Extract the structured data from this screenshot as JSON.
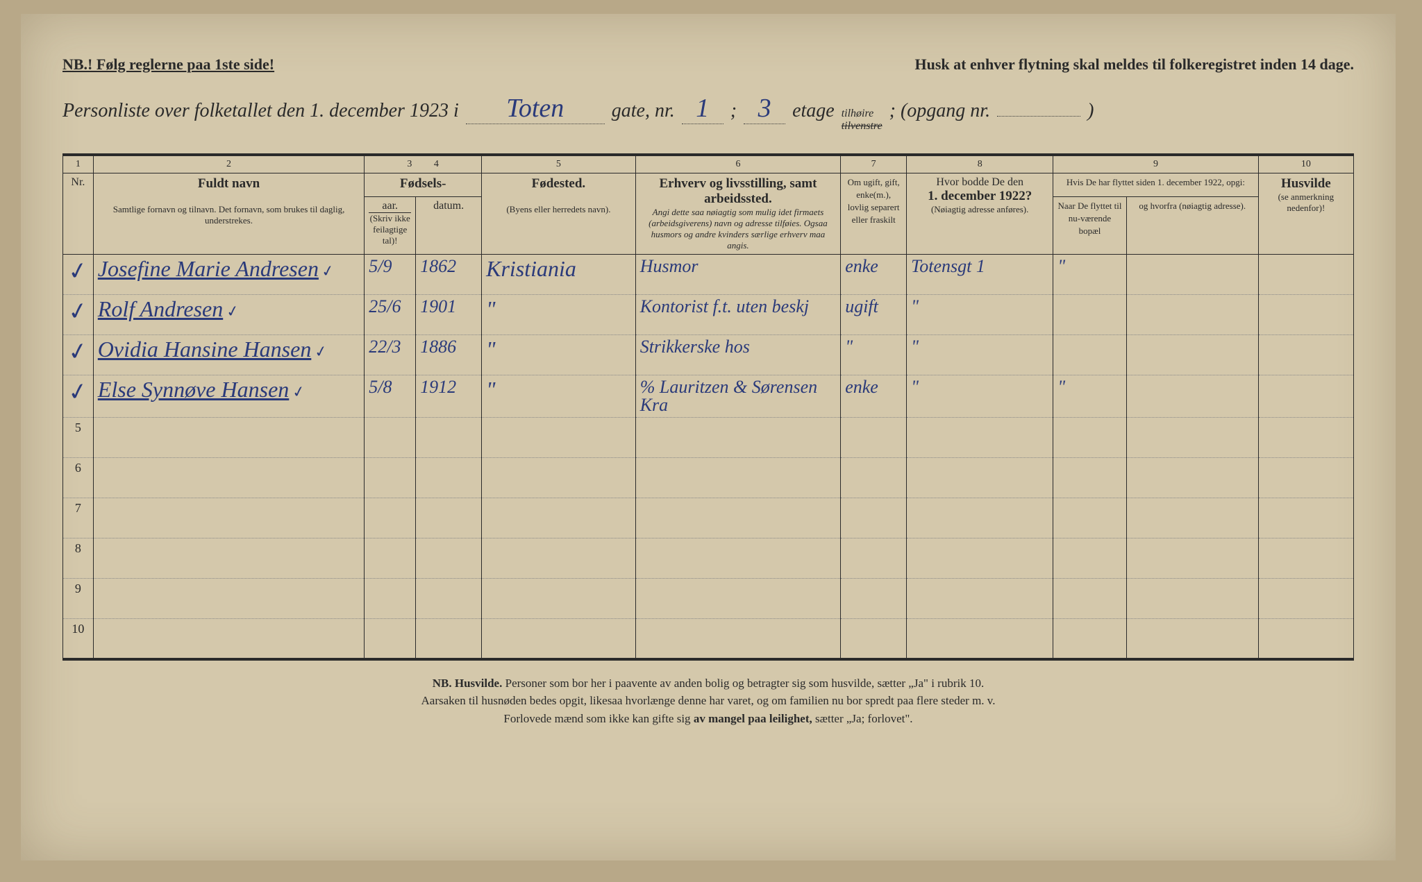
{
  "top": {
    "left": "NB.! Følg reglerne paa 1ste side!",
    "right": "Husk at enhver flytning skal meldes til folkeregistret inden 14 dage."
  },
  "title": {
    "prefix": "Personliste over folketallet den 1. december 1923 i",
    "street": "Toten",
    "gate_label": "gate, nr.",
    "gate_nr": "1",
    "semicolon": ";",
    "etage_nr": "3",
    "etage_label": "etage",
    "tilheire": "tilhøire",
    "tilvenstre": "tilvenstre",
    "opgang": "; (opgang nr.",
    "opgang_val": "",
    "close": ")"
  },
  "columns": {
    "nums": [
      "1",
      "2",
      "3",
      "4",
      "5",
      "6",
      "7",
      "8",
      "9",
      "10"
    ],
    "nr": "Nr.",
    "name_big": "Fuldt navn",
    "name_small": "Samtlige fornavn og tilnavn.   Det fornavn, som brukes til daglig, understrekes.",
    "fodsels": "Fødsels-",
    "aar": "aar.",
    "datum": "datum.",
    "aar_small": "(Skriv ikke feilagtige tal)!",
    "fodested_big": "Fødested.",
    "fodested_small": "(Byens eller herredets navn).",
    "erhverv_big": "Erhverv og livsstilling, samt arbeidssted.",
    "erhverv_small": "Angi dette saa nøiagtig som mulig idet firmaets (arbeidsgiverens) navn og adresse tilføies. Ogsaa husmors og andre kvinders særlige erhverv maa angis.",
    "ugift": "Om ugift, gift, enke(m.), lovlig separert eller fraskilt",
    "bodde_top": "Hvor bodde De den",
    "bodde_date": "1. december 1922?",
    "bodde_small": "(Nøiagtig adresse anføres).",
    "flyttet_top": "Hvis De har flyttet siden 1. december 1922, opgi:",
    "naar": "Naar De flyttet til nu-værende bopæl",
    "hvorfra": "og hvorfra (nøiagtig adresse).",
    "husvilde_big": "Husvilde",
    "husvilde_small": "(se anmerkning nedenfor)!"
  },
  "rows": [
    {
      "nr": "1",
      "check": "✓",
      "name": "Josefine Marie Andresen",
      "nmark": "✓",
      "day": "5/9",
      "year": "1862",
      "place": "Kristiania",
      "erhverv": "Husmor",
      "status": "enke",
      "bodde": "Totensgt 1",
      "naar": "\"",
      "hvorfra": ""
    },
    {
      "nr": "2",
      "check": "✓",
      "name": "Rolf Andresen",
      "nmark": "✓",
      "day": "25/6",
      "year": "1901",
      "place": "\"",
      "erhverv": "Kontorist f.t. uten beskj",
      "status": "ugift",
      "bodde": "\"",
      "naar": "",
      "hvorfra": ""
    },
    {
      "nr": "3",
      "check": "✓",
      "name": "Ovidia Hansine Hansen",
      "nmark": "✓",
      "day": "22/3",
      "year": "1886",
      "place": "\"",
      "erhverv": "Strikkerske hos",
      "status": "\"",
      "bodde": "\"",
      "naar": "",
      "hvorfra": ""
    },
    {
      "nr": "4",
      "check": "✓",
      "name": "Else Synnøve Hansen",
      "nmark": "✓",
      "day": "5/8",
      "year": "1912",
      "place": "\"",
      "erhverv": "% Lauritzen & Sørensen Kra",
      "status": "enke",
      "bodde": "\"",
      "naar": "\"",
      "hvorfra": ""
    },
    {
      "nr": "5"
    },
    {
      "nr": "6"
    },
    {
      "nr": "7"
    },
    {
      "nr": "8"
    },
    {
      "nr": "9"
    },
    {
      "nr": "10"
    }
  ],
  "footer": {
    "l1a": "NB.  Husvilde.",
    "l1b": "  Personer som bor her i paavente av anden bolig og betragter sig som husvilde, sætter „Ja\" i rubrik 10.",
    "l2": "Aarsaken til husnøden bedes opgit, likesaa hvorlænge denne har varet, og om familien nu bor spredt paa flere steder m. v.",
    "l3a": "Forlovede mænd som ikke kan gifte sig ",
    "l3b": "av mangel paa leilighet,",
    "l3c": " sætter „Ja; forlovet\"."
  }
}
